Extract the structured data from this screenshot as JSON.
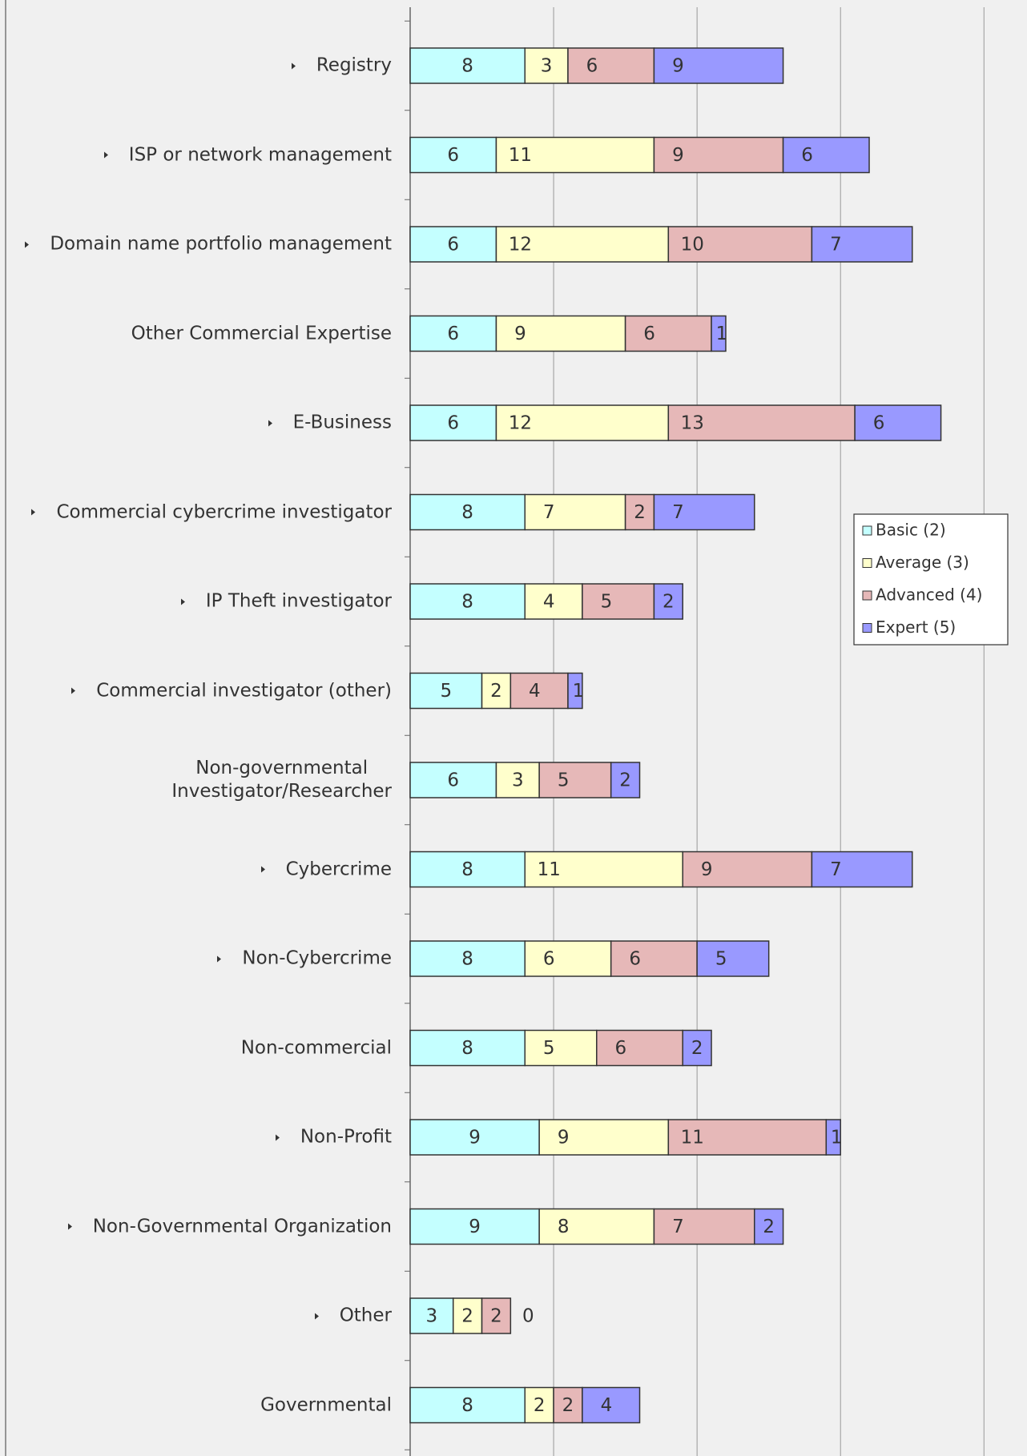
{
  "chart_data": {
    "type": "stacked-bar-horizontal",
    "categories": [
      "Registry",
      "ISP or network management",
      "Domain name portfolio management",
      "Other Commercial Expertise",
      "E-Business",
      "Commercial cybercrime investigator",
      "IP Theft investigator",
      "Commercial investigator (other)",
      "Non-governmental\nInvestigator/Researcher",
      "Cybercrime",
      "Non-Cybercrime",
      "Non-commercial",
      "Non-Profit",
      "Non-Governmental Organization",
      "Other",
      "Governmental"
    ],
    "expandable": [
      true,
      true,
      true,
      false,
      true,
      true,
      true,
      true,
      false,
      true,
      true,
      false,
      true,
      true,
      true,
      false
    ],
    "series": [
      {
        "name": "Basic (2)",
        "color": "#c4ffff",
        "values": [
          8,
          6,
          6,
          6,
          6,
          8,
          8,
          5,
          6,
          8,
          8,
          8,
          9,
          9,
          3,
          8
        ]
      },
      {
        "name": "Average (3)",
        "color": "#ffffcc",
        "values": [
          3,
          11,
          12,
          9,
          12,
          7,
          4,
          2,
          3,
          11,
          6,
          5,
          9,
          8,
          2,
          2
        ]
      },
      {
        "name": "Advanced (4)",
        "color": "#e6b8b8",
        "values": [
          6,
          9,
          10,
          6,
          13,
          2,
          5,
          4,
          5,
          9,
          6,
          6,
          11,
          7,
          2,
          2
        ]
      },
      {
        "name": "Expert (5)",
        "color": "#9999ff",
        "values": [
          9,
          6,
          7,
          1,
          6,
          7,
          2,
          1,
          2,
          7,
          5,
          2,
          1,
          2,
          0,
          4
        ]
      }
    ],
    "xlim": [
      0,
      43
    ],
    "xticks": [
      0,
      10,
      20,
      30,
      40
    ],
    "grid": true,
    "legend": "right"
  }
}
